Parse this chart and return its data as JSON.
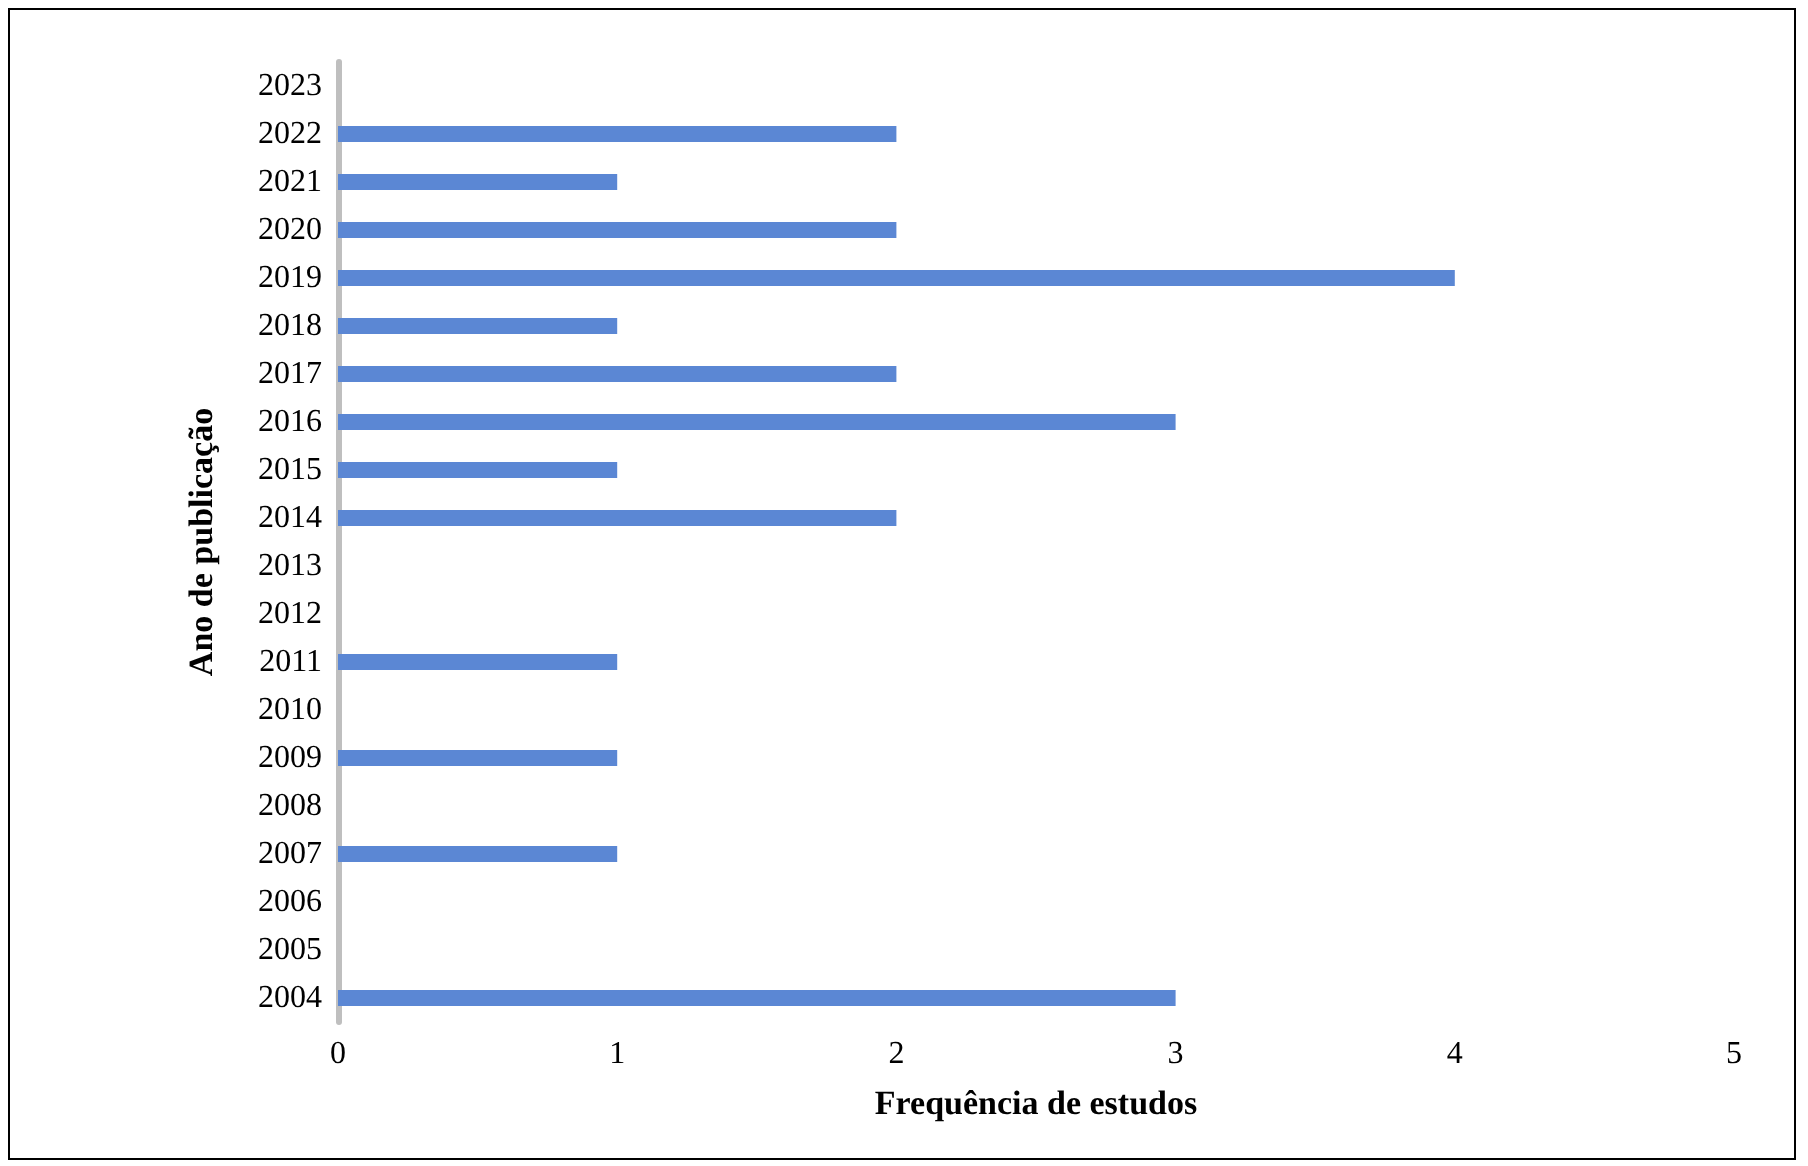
{
  "chart_data": {
    "type": "bar",
    "orientation": "horizontal",
    "xlabel": "Frequência de estudos",
    "ylabel": "Ano de publicação",
    "categories": [
      "2023",
      "2022",
      "2021",
      "2020",
      "2019",
      "2018",
      "2017",
      "2016",
      "2015",
      "2014",
      "2013",
      "2012",
      "2011",
      "2010",
      "2009",
      "2008",
      "2007",
      "2006",
      "2005",
      "2004"
    ],
    "values": [
      0,
      2,
      1,
      2,
      4,
      1,
      2,
      3,
      1,
      2,
      0,
      0,
      1,
      0,
      1,
      0,
      1,
      0,
      0,
      3
    ],
    "color": "#5b87d4",
    "xlim": [
      0,
      5
    ],
    "xticks": [
      0,
      1,
      2,
      3,
      4,
      5
    ],
    "grid": false
  }
}
